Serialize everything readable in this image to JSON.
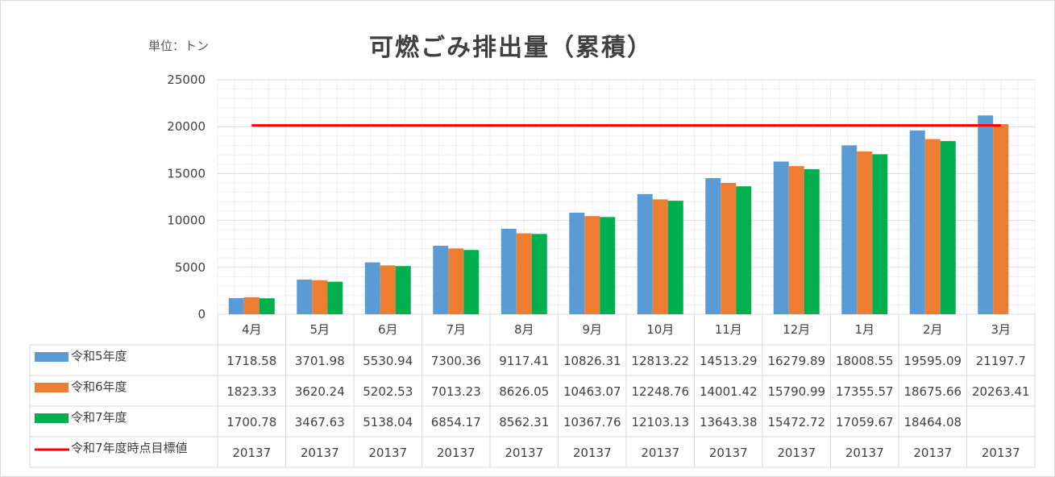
{
  "unit_label": "単位：トン",
  "chart_data": {
    "type": "bar",
    "title": "可燃ごみ排出量（累積）",
    "ylabel": "",
    "xlabel": "",
    "ylim": [
      0,
      25000
    ],
    "yticks": [
      0,
      5000,
      10000,
      15000,
      20000,
      25000
    ],
    "grid": true,
    "categories": [
      "4月",
      "5月",
      "6月",
      "7月",
      "8月",
      "9月",
      "10月",
      "11月",
      "12月",
      "1月",
      "2月",
      "3月"
    ],
    "series": [
      {
        "name": "令和5年度",
        "kind": "bar",
        "color": "#5b9bd5",
        "values": [
          1718.58,
          3701.98,
          5530.94,
          7300.36,
          9117.41,
          10826.31,
          12813.22,
          14513.29,
          16279.89,
          18008.55,
          19595.09,
          21197.7
        ]
      },
      {
        "name": "令和6年度",
        "kind": "bar",
        "color": "#ed7d31",
        "values": [
          1823.33,
          3620.24,
          5202.53,
          7013.23,
          8626.05,
          10463.07,
          12248.76,
          14001.42,
          15790.99,
          17355.57,
          18675.66,
          20263.41
        ]
      },
      {
        "name": "令和7年度",
        "kind": "bar",
        "color": "#00b050",
        "values": [
          1700.78,
          3467.63,
          5138.04,
          6854.17,
          8562.31,
          10367.76,
          12103.13,
          13643.38,
          15472.72,
          17059.67,
          18464.08,
          null
        ]
      },
      {
        "name": "令和7年度時点目標値",
        "kind": "line",
        "color": "#ff0000",
        "values": [
          20137,
          20137,
          20137,
          20137,
          20137,
          20137,
          20137,
          20137,
          20137,
          20137,
          20137,
          20137
        ]
      }
    ],
    "table": {
      "rows": [
        [
          "1718.58",
          "3701.98",
          "5530.94",
          "7300.36",
          "9117.41",
          "10826.31",
          "12813.22",
          "14513.29",
          "16279.89",
          "18008.55",
          "19595.09",
          "21197.7"
        ],
        [
          "1823.33",
          "3620.24",
          "5202.53",
          "7013.23",
          "8626.05",
          "10463.07",
          "12248.76",
          "14001.42",
          "15790.99",
          "17355.57",
          "18675.66",
          "20263.41"
        ],
        [
          "1700.78",
          "3467.63",
          "5138.04",
          "6854.17",
          "8562.31",
          "10367.76",
          "12103.13",
          "13643.38",
          "15472.72",
          "17059.67",
          "18464.08",
          ""
        ],
        [
          "20137",
          "20137",
          "20137",
          "20137",
          "20137",
          "20137",
          "20137",
          "20137",
          "20137",
          "20137",
          "20137",
          "20137"
        ]
      ]
    }
  }
}
